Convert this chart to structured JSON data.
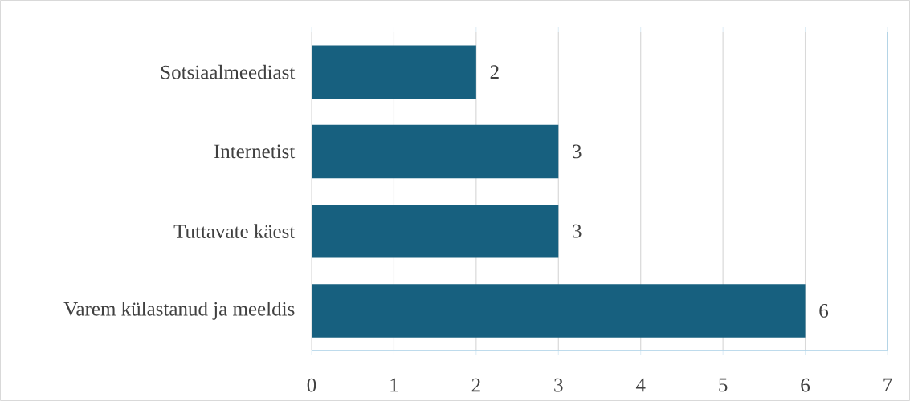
{
  "chart_data": {
    "type": "bar",
    "orientation": "horizontal",
    "categories": [
      "Sotsiaalmeediast",
      "Internetist",
      "Tuttavate käest",
      "Varem külastanud ja meeldis"
    ],
    "values": [
      2,
      3,
      3,
      6
    ],
    "color": "#17607f",
    "xlim": [
      0,
      7
    ],
    "xticks": [
      0,
      1,
      2,
      3,
      4,
      5,
      6,
      7
    ],
    "grid": "x",
    "data_labels": true
  }
}
